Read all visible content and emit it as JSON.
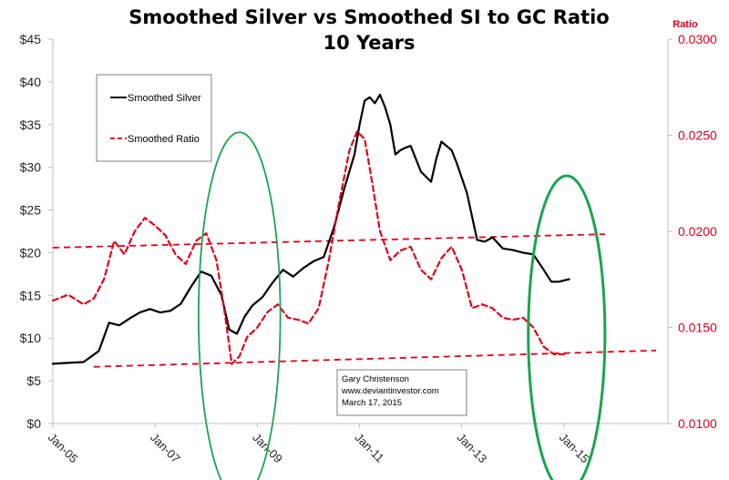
{
  "chart_data": {
    "type": "line",
    "title": "Smoothed Silver vs Smoothed SI to GC Ratio",
    "subtitle": "10 Years",
    "xlabel": "",
    "ylabel": "",
    "y2label": "Ratio",
    "x_ticks": [
      "Jan-05",
      "Jan-07",
      "Jan-09",
      "Jan-11",
      "Jan-13",
      "Jan-15"
    ],
    "x_range": [
      2005.0,
      2017.0
    ],
    "ylim": [
      0,
      45
    ],
    "y_ticks": [
      "$0",
      "$5",
      "$10",
      "$15",
      "$20",
      "$25",
      "$30",
      "$35",
      "$40",
      "$45"
    ],
    "y_tick_values": [
      0,
      5,
      10,
      15,
      20,
      25,
      30,
      35,
      40,
      45
    ],
    "y2lim": [
      0.01,
      0.03
    ],
    "y2_ticks": [
      "0.0100",
      "0.0150",
      "0.0200",
      "0.0250",
      "0.0300"
    ],
    "y2_tick_values": [
      0.01,
      0.015,
      0.02,
      0.025,
      0.03
    ],
    "grid": false,
    "legend": {
      "placement": "top-left",
      "entries": [
        {
          "label": "Smoothed Silver",
          "color": "#000000",
          "style": "solid"
        },
        {
          "label": "Smoothed Ratio",
          "color": "#e3001b",
          "style": "dashed"
        }
      ]
    },
    "series": [
      {
        "name": "Smoothed Silver",
        "axis": "left",
        "color": "#000000",
        "style": "solid",
        "x": [
          2005.0,
          2005.3,
          2005.6,
          2005.9,
          2006.1,
          2006.3,
          2006.5,
          2006.7,
          2006.9,
          2007.1,
          2007.3,
          2007.5,
          2007.7,
          2007.9,
          2008.1,
          2008.3,
          2008.45,
          2008.6,
          2008.75,
          2008.9,
          2009.1,
          2009.3,
          2009.5,
          2009.7,
          2009.9,
          2010.1,
          2010.3,
          2010.5,
          2010.7,
          2010.9,
          2011.0,
          2011.1,
          2011.2,
          2011.3,
          2011.4,
          2011.5,
          2011.6,
          2011.7,
          2011.8,
          2011.9,
          2012.0,
          2012.2,
          2012.4,
          2012.5,
          2012.6,
          2012.8,
          2012.9,
          2013.1,
          2013.3,
          2013.45,
          2013.6,
          2013.8,
          2014.0,
          2014.2,
          2014.4,
          2014.6,
          2014.75,
          2014.9,
          2015.1
        ],
        "values": [
          7.0,
          7.1,
          7.2,
          8.5,
          11.8,
          11.5,
          12.3,
          13.0,
          13.4,
          13.0,
          13.2,
          14.0,
          16.0,
          17.8,
          17.3,
          15.0,
          11.0,
          10.5,
          12.5,
          13.8,
          14.8,
          16.5,
          18.0,
          17.2,
          18.2,
          19.0,
          19.5,
          23.0,
          27.5,
          31.5,
          35.0,
          37.8,
          38.2,
          37.5,
          38.5,
          37.0,
          35.0,
          31.5,
          32.0,
          32.3,
          32.5,
          29.5,
          28.3,
          31.0,
          33.0,
          32.0,
          30.5,
          27.0,
          21.5,
          21.3,
          21.8,
          20.5,
          20.3,
          20.0,
          19.8,
          18.0,
          16.6,
          16.6,
          16.9
        ]
      },
      {
        "name": "Smoothed Ratio",
        "axis": "right",
        "color": "#e3001b",
        "style": "dashed",
        "x": [
          2005.0,
          2005.3,
          2005.6,
          2005.8,
          2006.0,
          2006.2,
          2006.4,
          2006.6,
          2006.8,
          2007.0,
          2007.2,
          2007.4,
          2007.6,
          2007.8,
          2008.0,
          2008.2,
          2008.35,
          2008.5,
          2008.65,
          2008.8,
          2009.0,
          2009.2,
          2009.4,
          2009.6,
          2009.8,
          2010.0,
          2010.2,
          2010.4,
          2010.6,
          2010.8,
          2010.95,
          2011.1,
          2011.25,
          2011.4,
          2011.6,
          2011.8,
          2012.0,
          2012.2,
          2012.4,
          2012.6,
          2012.8,
          2013.0,
          2013.2,
          2013.4,
          2013.6,
          2013.8,
          2014.0,
          2014.2,
          2014.4,
          2014.6,
          2014.8,
          2015.0
        ],
        "values": [
          0.0164,
          0.0167,
          0.0162,
          0.0165,
          0.0175,
          0.0195,
          0.0188,
          0.02,
          0.0207,
          0.0203,
          0.0198,
          0.0188,
          0.0183,
          0.0195,
          0.0199,
          0.0185,
          0.016,
          0.0131,
          0.0135,
          0.0145,
          0.015,
          0.0158,
          0.0162,
          0.0155,
          0.0154,
          0.0152,
          0.016,
          0.0185,
          0.0215,
          0.0242,
          0.0252,
          0.0248,
          0.0225,
          0.02,
          0.0185,
          0.019,
          0.0192,
          0.018,
          0.0175,
          0.0186,
          0.0192,
          0.018,
          0.016,
          0.0162,
          0.016,
          0.0155,
          0.0154,
          0.0155,
          0.015,
          0.014,
          0.0136,
          0.0136
        ]
      }
    ],
    "trendlines": [
      {
        "name": "upper-trendline",
        "axis": "right",
        "color": "#e3001b",
        "style": "dashed",
        "x": [
          2005.0,
          2015.8
        ],
        "values": [
          0.01915,
          0.01985
        ]
      },
      {
        "name": "lower-trendline",
        "axis": "right",
        "color": "#e3001b",
        "style": "dashed",
        "x": [
          2005.8,
          2016.8
        ],
        "values": [
          0.01295,
          0.0138
        ]
      }
    ],
    "annotations": [
      {
        "name": "circle-2008",
        "shape": "ellipse",
        "color": "#1aa550",
        "center_x": 2008.65,
        "center_y": 12.6,
        "rx_years": 0.8,
        "ry_dollars": 21.5
      },
      {
        "name": "circle-2015",
        "shape": "ellipse",
        "color": "#1aa550",
        "center_x": 2015.05,
        "center_y": 10.5,
        "rx_years": 0.75,
        "ry_dollars": 18.5
      }
    ],
    "note": {
      "lines": [
        "Gary Christenson",
        "www.deviantinvestor.com",
        "March 17, 2015"
      ]
    }
  }
}
